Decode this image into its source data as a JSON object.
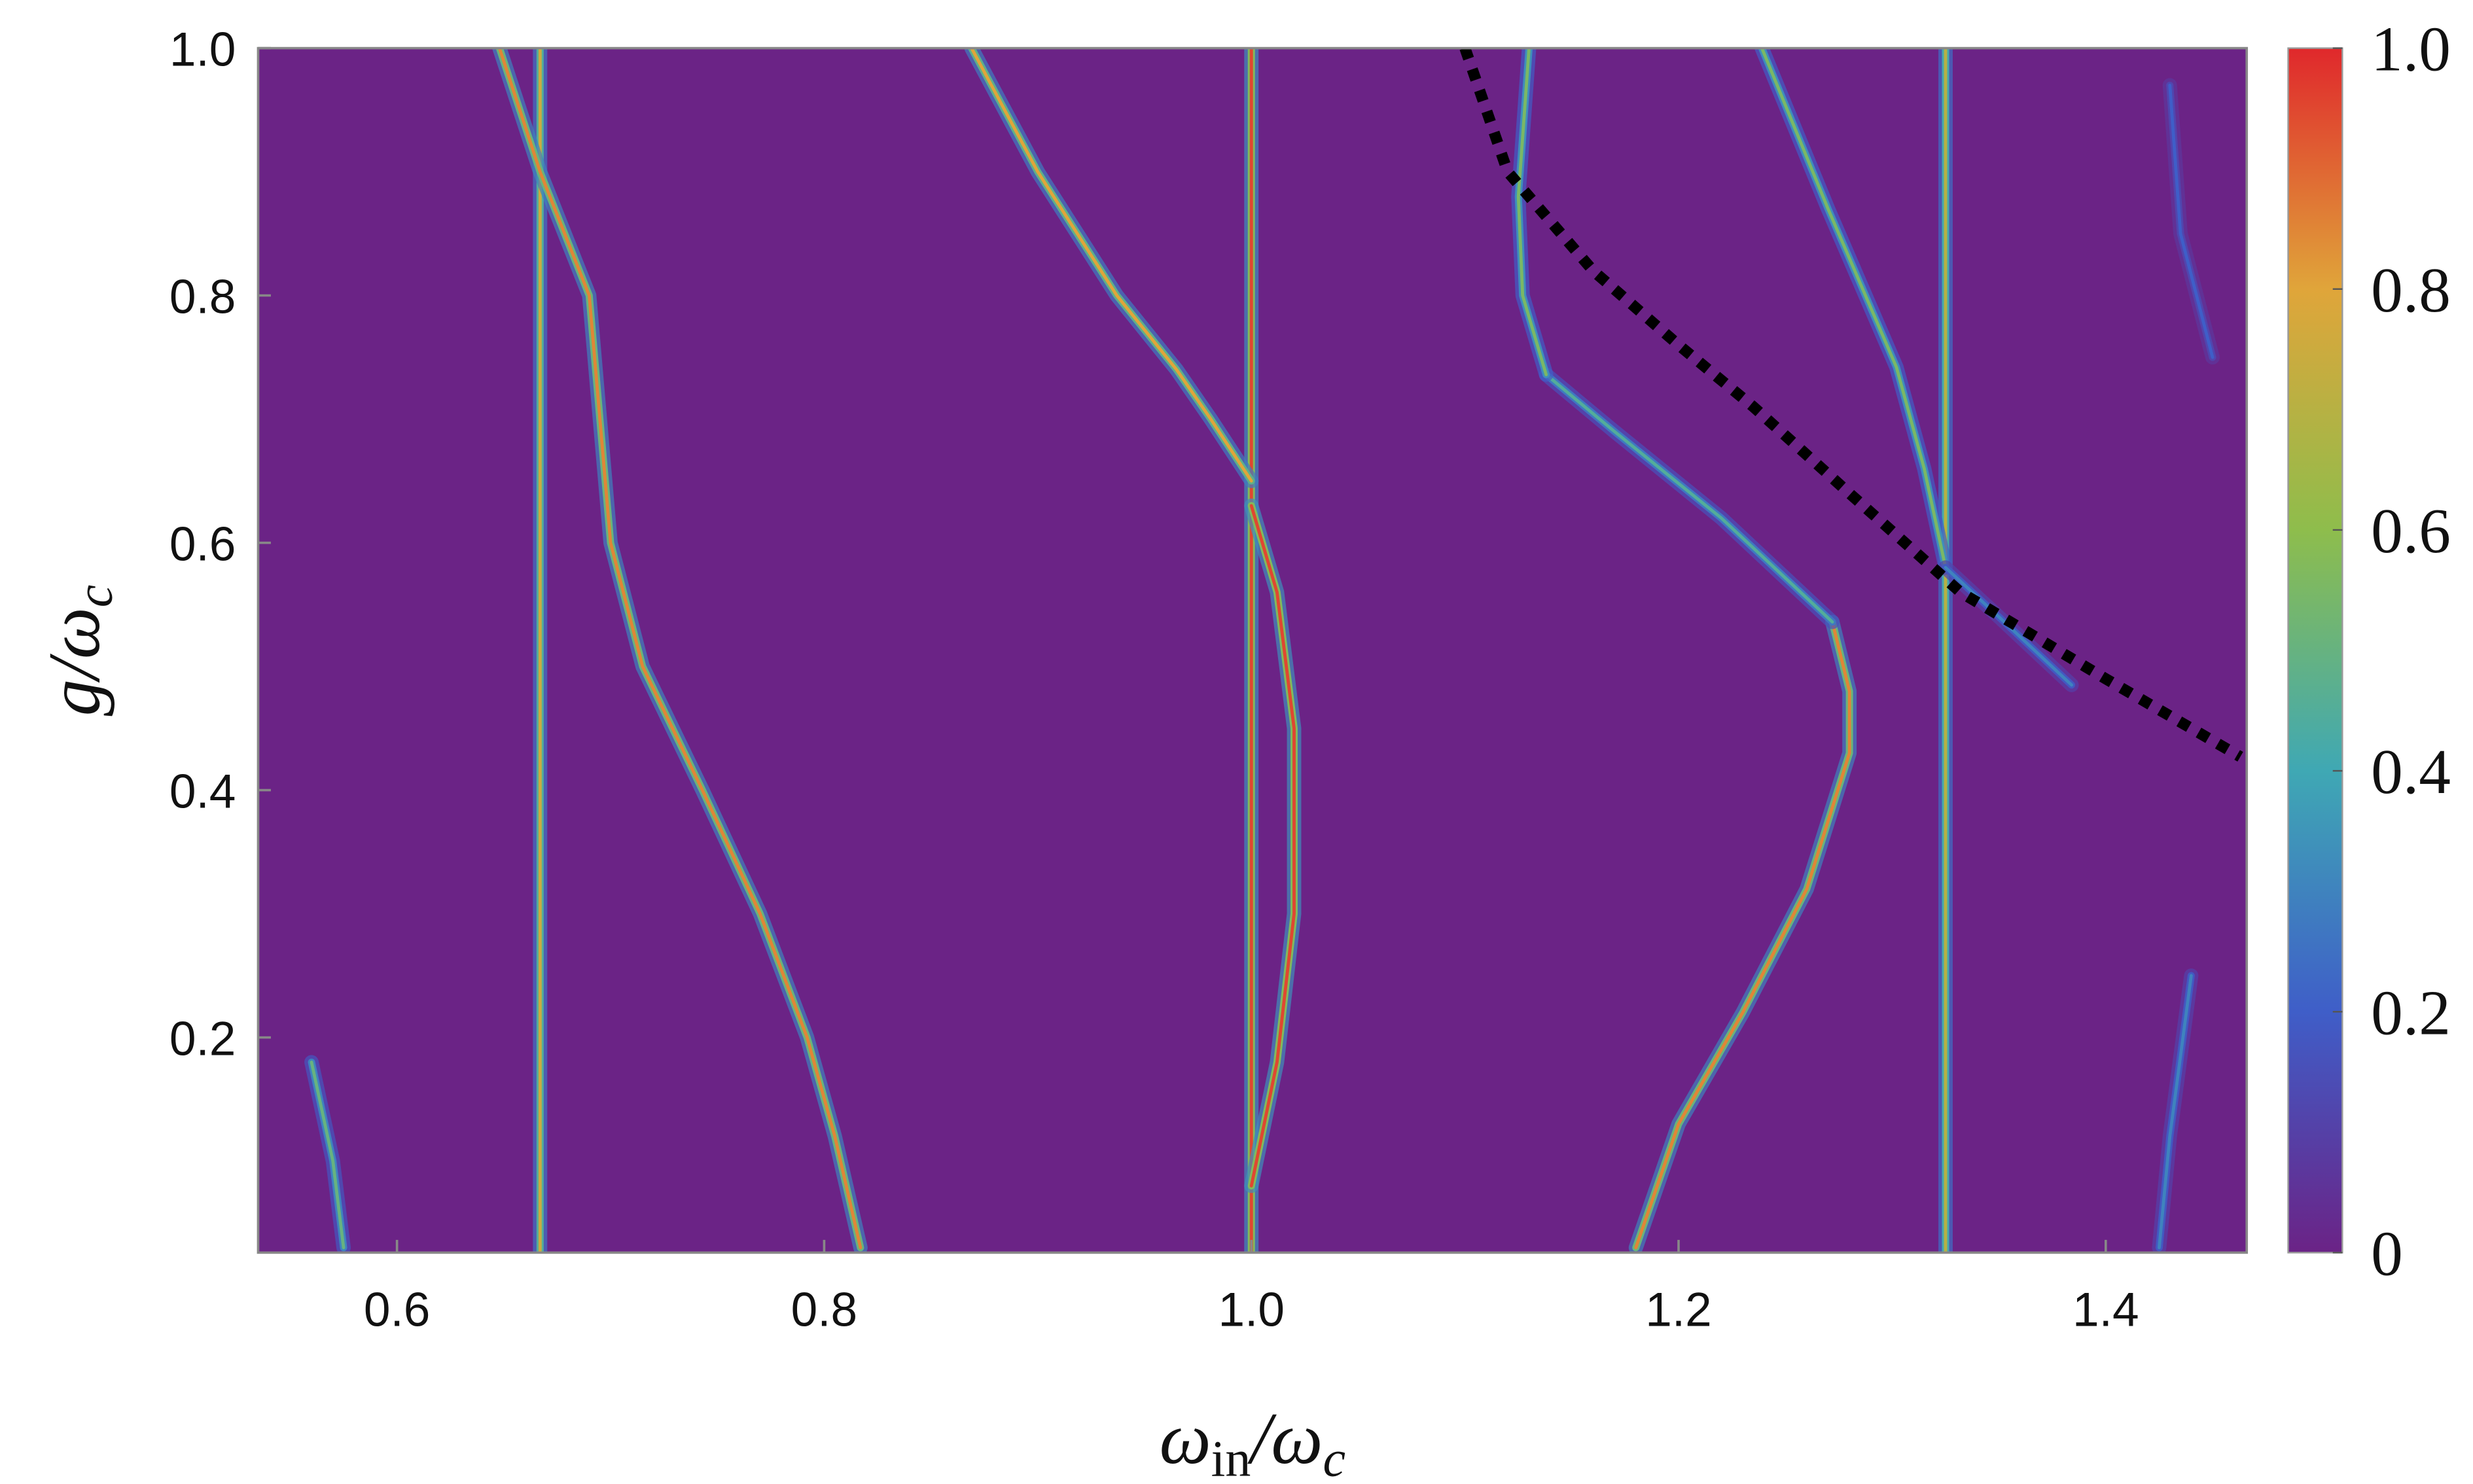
{
  "chart_data": {
    "type": "density",
    "background": "#6b2386",
    "xlabel": [
      "ω",
      "in",
      "/ω",
      "c"
    ],
    "ylabel": [
      "g/ω",
      "c"
    ],
    "xlim": [
      0.535,
      1.466
    ],
    "ylim": [
      0.026,
      1.0
    ],
    "xticks": [
      0.6,
      0.8,
      {
        "value": 1,
        "label": "1.0"
      },
      1.2,
      1.4
    ],
    "yticks": [
      0.2,
      0.4,
      0.6,
      0.8,
      {
        "value": 1,
        "label": "1.0"
      }
    ],
    "curves": [
      {
        "x": [
          0.667,
          0.667
        ],
        "y": [
          0.026,
          1.0
        ],
        "intensity": 0.75
      },
      {
        "x": [
          1.0,
          1.0
        ],
        "y": [
          0.026,
          1.0
        ],
        "intensity": 0.95
      },
      {
        "x": [
          1.325,
          1.325
        ],
        "y": [
          0.026,
          1.0
        ],
        "intensity": 0.7
      },
      {
        "x": [
          0.648,
          0.667,
          0.69,
          0.7,
          0.715,
          0.743,
          0.77,
          0.792,
          0.805,
          0.817
        ],
        "y": [
          1.0,
          0.9,
          0.8,
          0.6,
          0.5,
          0.4,
          0.3,
          0.2,
          0.12,
          0.03
        ],
        "intensity": 0.85
      },
      {
        "x": [
          0.869,
          0.9,
          0.937,
          0.965,
          0.981,
          1.0
        ],
        "y": [
          1.0,
          0.9,
          0.8,
          0.74,
          0.7,
          0.65
        ],
        "intensity": 0.8
      },
      {
        "x": [
          1.0,
          1.012,
          1.02,
          1.02,
          1.012,
          1.0
        ],
        "y": [
          0.63,
          0.56,
          0.45,
          0.3,
          0.18,
          0.08
        ],
        "intensity": 0.95
      },
      {
        "x": [
          1.18,
          1.2,
          1.23,
          1.26,
          1.28,
          1.28,
          1.272
        ],
        "y": [
          0.03,
          0.13,
          0.22,
          0.32,
          0.43,
          0.48,
          0.536
        ],
        "intensity": 0.85
      },
      {
        "x": [
          1.272,
          1.22,
          1.17,
          1.138
        ],
        "y": [
          0.536,
          0.62,
          0.69,
          0.736
        ],
        "intensity": 0.45
      },
      {
        "x": [
          1.138,
          1.127,
          1.125,
          1.13
        ],
        "y": [
          0.736,
          0.8,
          0.88,
          1.0
        ],
        "intensity": 0.55
      },
      {
        "x": [
          1.239,
          1.27,
          1.302,
          1.315,
          1.325
        ],
        "y": [
          1.0,
          0.87,
          0.742,
          0.66,
          0.58
        ],
        "intensity": 0.55
      },
      {
        "x": [
          1.325,
          1.35,
          1.384
        ],
        "y": [
          0.58,
          0.54,
          0.485
        ],
        "intensity": 0.3
      },
      {
        "x": [
          0.56,
          0.57,
          0.575
        ],
        "y": [
          0.18,
          0.1,
          0.03
        ],
        "intensity": 0.5
      },
      {
        "x": [
          1.44,
          1.43,
          1.425
        ],
        "y": [
          0.25,
          0.12,
          0.03
        ],
        "intensity": 0.3
      },
      {
        "x": [
          1.43,
          1.435,
          1.45
        ],
        "y": [
          0.97,
          0.85,
          0.75
        ],
        "intensity": 0.2
      }
    ],
    "dashed_curve": {
      "x": [
        1.1,
        1.12,
        1.16,
        1.2,
        1.235,
        1.28,
        1.332,
        1.4,
        1.463
      ],
      "y": [
        1.0,
        0.9,
        0.82,
        0.76,
        0.71,
        0.64,
        0.56,
        0.49,
        0.427
      ],
      "color": "#000000"
    },
    "colorbar": {
      "colors": [
        "#6b2386",
        "#3f5ec8",
        "#3fa8b4",
        "#8ebd4c",
        "#e0a53a",
        "#e0282c"
      ],
      "lim": [
        0,
        1
      ],
      "ticks": [
        0,
        0.2,
        0.4,
        0.6,
        0.8,
        {
          "value": 1,
          "label": "1.0"
        }
      ]
    }
  }
}
